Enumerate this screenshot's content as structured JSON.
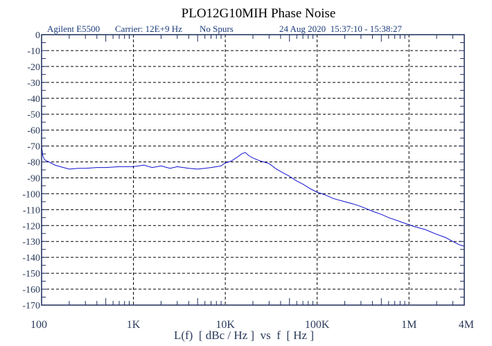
{
  "chart_data": {
    "type": "line",
    "title": "PLO12G10MIH Phase Noise",
    "header": {
      "instrument": "Agilent E5500",
      "carrier": "Carrier: 12E+9 Hz",
      "spurs": "No Spurs",
      "timestamp": "24 Aug 2020  15:37:10 - 15:38:27"
    },
    "xlabel": "L(f)  [ dBc / Hz ]  vs  f  [ Hz ]",
    "ylabel": "",
    "x_scale": "log",
    "xlim": [
      100,
      4000000
    ],
    "ylim": [
      -170,
      0
    ],
    "grid": true,
    "x_ticks": [
      {
        "value": 100,
        "label": "100"
      },
      {
        "value": 1000,
        "label": "1K"
      },
      {
        "value": 10000,
        "label": "10K"
      },
      {
        "value": 100000,
        "label": "100K"
      },
      {
        "value": 1000000,
        "label": "1M"
      },
      {
        "value": 4000000,
        "label": "4M"
      }
    ],
    "y_ticks": [
      0,
      -10,
      -20,
      -30,
      -40,
      -50,
      -60,
      -70,
      -80,
      -90,
      -100,
      -110,
      -120,
      -130,
      -140,
      -150,
      -160,
      -170
    ],
    "colors": {
      "series": "#1010d0",
      "axis": "#1a2a5a",
      "grid": "#000000"
    },
    "series": [
      {
        "x": [
          100,
          103,
          106,
          110,
          120,
          140,
          160,
          200,
          250,
          300,
          400,
          500,
          700,
          1000,
          1300,
          1600,
          2000,
          2500,
          3000,
          4000,
          5000,
          6000,
          7000,
          8000,
          9000,
          10000,
          11000,
          12000,
          13500,
          15000,
          16500,
          18000,
          20000,
          23000,
          26000,
          30000,
          35000,
          40000,
          50000,
          60000,
          70000,
          85000,
          100000,
          120000,
          150000,
          200000,
          250000,
          300000,
          400000,
          500000,
          600000,
          800000,
          1000000,
          1200000,
          1500000,
          2000000,
          2500000,
          3000000,
          3500000,
          4000000
        ],
        "y": [
          -70,
          -76,
          -78,
          -79,
          -80,
          -82,
          -83,
          -84.5,
          -84,
          -84,
          -83.5,
          -83.5,
          -83,
          -83,
          -82,
          -83.5,
          -82.5,
          -84,
          -83,
          -84,
          -84.5,
          -84,
          -83.5,
          -83,
          -82.5,
          -80.5,
          -80,
          -79,
          -77,
          -75,
          -74,
          -76,
          -77.5,
          -79,
          -80,
          -81,
          -84,
          -86,
          -89,
          -92,
          -94,
          -97,
          -99,
          -100.5,
          -103,
          -105,
          -106.5,
          -108,
          -111,
          -113,
          -115,
          -117.5,
          -119.5,
          -121,
          -122.5,
          -125.5,
          -127.5,
          -130,
          -132,
          -133
        ]
      }
    ]
  }
}
